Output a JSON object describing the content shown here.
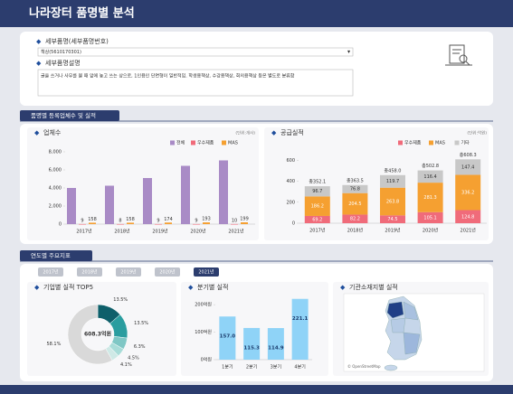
{
  "header": {
    "title": "나라장터 품명별 분석"
  },
  "filter": {
    "item_label": "세부품명(세부품명번호)",
    "item_value": "책상(5610170301)",
    "desc_label": "세부품명설명",
    "desc_text": "글을 쓰거나 사무를 볼 때 앞에 놓고 쓰는 상으로, 1인용인 단면형이 일반적임. 학생용책상, 수강용책상, 회의용책상 등은 별도로 분류함"
  },
  "sections": [
    "품명별 등록업체수 및 실적",
    "연도별 주요지표"
  ],
  "year_tabs": {
    "items": [
      "2017년",
      "2018년",
      "2019년",
      "2020년",
      "2021년"
    ],
    "selected": 4
  },
  "map": {
    "title": "기관소재지별 실적",
    "attribution": "© OpenStreetMap"
  },
  "chart_data": [
    {
      "type": "grouped_bar",
      "title": "업체수",
      "unit": "(단위:개사)",
      "categories": [
        "2017년",
        "2018년",
        "2019년",
        "2020년",
        "2021년"
      ],
      "series": [
        {
          "name": "전체",
          "color": "#a98bc6",
          "values": [
            4000,
            4250,
            5100,
            6450,
            7050
          ],
          "show_labels": false
        },
        {
          "name": "우수제품",
          "color": "#f06b7a",
          "values": [
            9,
            8,
            9,
            9,
            10
          ],
          "show_labels": true
        },
        {
          "name": "MAS",
          "color": "#f5a031",
          "values": [
            158,
            158,
            174,
            193,
            199
          ],
          "show_labels": true
        }
      ],
      "ylim": [
        0,
        8000
      ],
      "yticks": [
        0,
        {
          "value": 2000,
          "label": "2,000"
        },
        {
          "value": 4000,
          "label": "4,000"
        },
        {
          "value": 6000,
          "label": "6,000"
        },
        {
          "value": 8000,
          "label": "8,000"
        }
      ],
      "grid": false
    },
    {
      "type": "stacked_bar",
      "title": "공급실적",
      "unit": "(단위:억원)",
      "categories": [
        "2017년",
        "2018년",
        "2019년",
        "2020년",
        "2021년"
      ],
      "series": [
        {
          "name": "우수제품",
          "color": "#f06b7a",
          "values": [
            69.2,
            82.2,
            74.5,
            105.1,
            124.8
          ]
        },
        {
          "name": "MAS",
          "color": "#f5a031",
          "values": [
            186.2,
            204.5,
            263.8,
            281.3,
            336.2
          ]
        },
        {
          "name": "기타",
          "color": "#c8c8c8",
          "values": [
            96.7,
            76.8,
            119.7,
            116.4,
            147.4
          ]
        }
      ],
      "totals": [
        352.1,
        363.5,
        458.0,
        502.8,
        608.3
      ],
      "total_labels": [
        "총352.1",
        "총363.5",
        "총458.0",
        "총502.8",
        "총608.3"
      ],
      "ylim": [
        0,
        680
      ],
      "yticks": [
        0,
        200,
        400,
        600
      ],
      "grid": false
    },
    {
      "type": "donut",
      "title": "기업별 실적 TOP5",
      "center_label": "608.3억원",
      "values": [
        13.5,
        13.5,
        6.3,
        4.5,
        4.1,
        58.1
      ],
      "value_labels": [
        "13.5%",
        "13.5%",
        "6.3%",
        "4.5%",
        "4.1%",
        "58.1%"
      ],
      "colors": [
        "#0e5f6a",
        "#2a9d9f",
        "#7fc7c5",
        "#a8dcd8",
        "#cfe9e6",
        "#d9d9d9"
      ]
    },
    {
      "type": "bar",
      "title": "분기별 실적",
      "categories": [
        "1분기",
        "2분기",
        "3분기",
        "4분기"
      ],
      "values": [
        157.0,
        115.3,
        114.9,
        221.1
      ],
      "value_labels": [
        "157.0",
        "115.3",
        "114.9",
        "221.1"
      ],
      "color": "#8fd3f7",
      "ylim": [
        0,
        240
      ],
      "yticks": [
        {
          "value": 0,
          "label": "0억원"
        },
        {
          "value": 100,
          "label": "100억원"
        },
        {
          "value": 200,
          "label": "200억원"
        }
      ],
      "grid": false
    }
  ]
}
